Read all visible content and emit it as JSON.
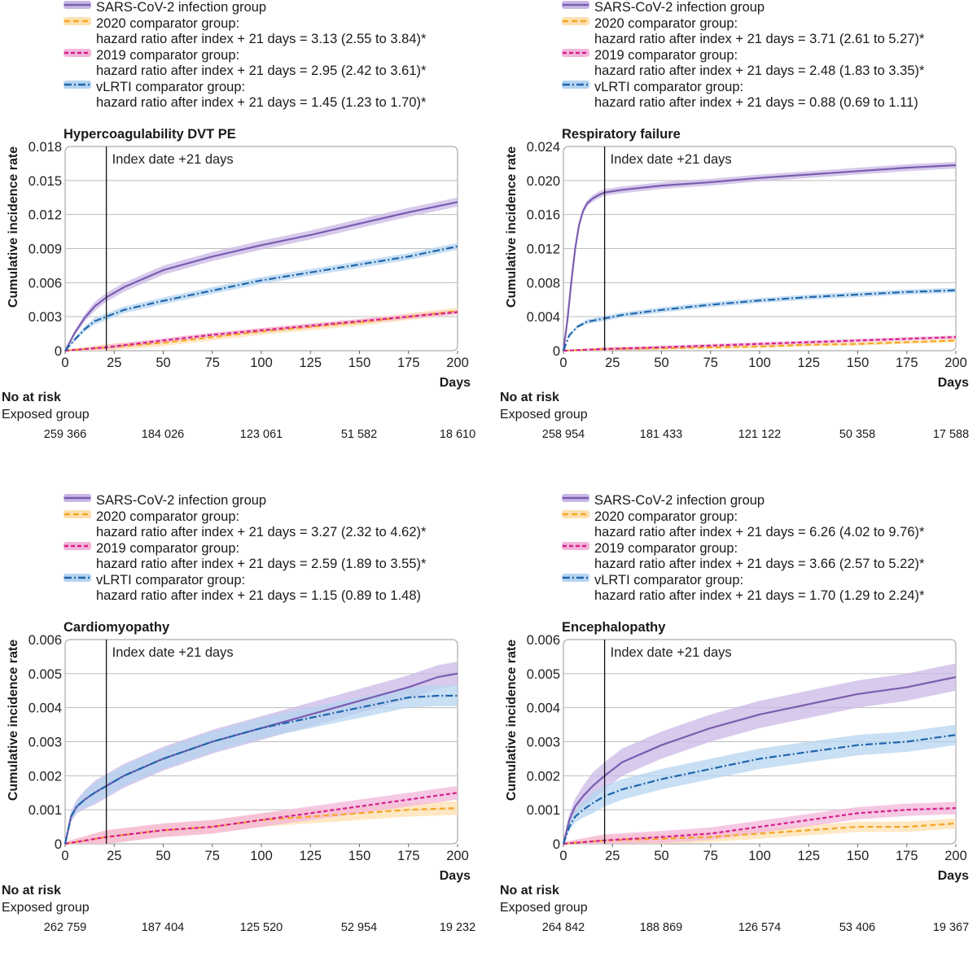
{
  "series_styles": [
    {
      "key": "sars",
      "color": "#7b5cb0",
      "band": "#c9b8e6",
      "dash": ""
    },
    {
      "key": "c2020",
      "color": "#f5a623",
      "band": "#fde0b0",
      "dash": "7,4"
    },
    {
      "key": "c2019",
      "color": "#d6208e",
      "band": "#f3b6da",
      "dash": "5,3"
    },
    {
      "key": "vlrti",
      "color": "#2066ac",
      "band": "#b6d4f0",
      "dash": "9,3,2,3"
    }
  ],
  "index_label": "Index date +21 days",
  "ylabel": "Cumulative incidence rate",
  "xlabel": "Days",
  "risk_title": "No at risk",
  "risk_group": "Exposed group",
  "chart_data": [
    {
      "type": "line",
      "title": "Hypercoagulability DVT PE",
      "legend": [
        {
          "title": "SARS-CoV-2 infection group",
          "hr": ""
        },
        {
          "title": "2020 comparator group:",
          "hr": "hazard ratio after index + 21 days = 3.13 (2.55 to 3.84)*"
        },
        {
          "title": "2019 comparator group:",
          "hr": "hazard ratio after index + 21 days = 2.95 (2.42 to 3.61)*"
        },
        {
          "title": "vLRTI comparator group:",
          "hr": "hazard ratio after index + 21 days = 1.45 (1.23 to 1.70)*"
        }
      ],
      "xlim": [
        0,
        200
      ],
      "ylim": [
        0,
        0.018
      ],
      "xticks": [
        0,
        25,
        50,
        75,
        100,
        125,
        150,
        175,
        200
      ],
      "yticks": [
        0,
        0.003,
        0.006,
        0.009,
        0.012,
        0.015,
        0.018
      ],
      "ytick_labels": [
        "0",
        "0.003",
        "0.006",
        "0.009",
        "0.012",
        "0.015",
        "0.018"
      ],
      "index_day": 21,
      "series": [
        {
          "name": "SARS-CoV-2 infection group",
          "x": [
            0,
            5,
            10,
            15,
            21,
            30,
            50,
            75,
            100,
            125,
            150,
            175,
            200
          ],
          "y": [
            0,
            0.0016,
            0.0029,
            0.0039,
            0.0047,
            0.0056,
            0.0071,
            0.0083,
            0.0093,
            0.0102,
            0.0112,
            0.0122,
            0.0131
          ],
          "band": 0.0004
        },
        {
          "name": "2020 comparator group",
          "x": [
            0,
            21,
            50,
            75,
            100,
            125,
            150,
            175,
            200
          ],
          "y": [
            0,
            0.0003,
            0.0007,
            0.0012,
            0.0017,
            0.0021,
            0.0025,
            0.003,
            0.0035
          ],
          "band": 0.0003
        },
        {
          "name": "2019 comparator group",
          "x": [
            0,
            21,
            50,
            75,
            100,
            125,
            150,
            175,
            200
          ],
          "y": [
            0,
            0.0003,
            0.0009,
            0.0014,
            0.0018,
            0.0022,
            0.0026,
            0.003,
            0.0034
          ],
          "band": 0.0002
        },
        {
          "name": "vLRTI comparator group",
          "x": [
            0,
            5,
            10,
            15,
            21,
            30,
            50,
            75,
            100,
            125,
            150,
            175,
            200
          ],
          "y": [
            0,
            0.001,
            0.0019,
            0.0026,
            0.003,
            0.0036,
            0.0044,
            0.0053,
            0.0062,
            0.0069,
            0.0076,
            0.0083,
            0.0092
          ],
          "band": 0.0003
        }
      ],
      "risk": [
        "259 366",
        "184 026",
        "123 061",
        "51 582",
        "18 610"
      ]
    },
    {
      "type": "line",
      "title": "Respiratory failure",
      "legend": [
        {
          "title": "SARS-CoV-2 infection group",
          "hr": ""
        },
        {
          "title": "2020 comparator group:",
          "hr": "hazard ratio after index + 21 days = 3.71 (2.61 to 5.27)*"
        },
        {
          "title": "2019 comparator group:",
          "hr": "hazard ratio after index + 21 days = 2.48 (1.83 to 3.35)*"
        },
        {
          "title": "vLRTI comparator group:",
          "hr": "hazard ratio after index + 21 days = 0.88 (0.69 to 1.11)"
        }
      ],
      "xlim": [
        0,
        200
      ],
      "ylim": [
        0,
        0.024
      ],
      "xticks": [
        0,
        25,
        50,
        75,
        100,
        125,
        150,
        175,
        200
      ],
      "yticks": [
        0,
        0.004,
        0.008,
        0.012,
        0.016,
        0.02,
        0.024
      ],
      "ytick_labels": [
        "0",
        "0.004",
        "0.008",
        "0.012",
        "0.016",
        "0.020",
        "0.024"
      ],
      "index_day": 21,
      "series": [
        {
          "name": "SARS-CoV-2 infection group",
          "x": [
            0,
            2,
            4,
            6,
            8,
            10,
            12,
            15,
            18,
            21,
            30,
            50,
            75,
            100,
            125,
            150,
            175,
            200
          ],
          "y": [
            0,
            0.0035,
            0.008,
            0.012,
            0.0148,
            0.0164,
            0.0173,
            0.0179,
            0.0183,
            0.0186,
            0.0189,
            0.0194,
            0.0198,
            0.0203,
            0.0207,
            0.0211,
            0.0215,
            0.0218
          ],
          "band": 0.0004
        },
        {
          "name": "2020 comparator group",
          "x": [
            0,
            21,
            50,
            75,
            100,
            125,
            150,
            175,
            200
          ],
          "y": [
            0,
            0.0002,
            0.0003,
            0.0004,
            0.0005,
            0.0007,
            0.0008,
            0.001,
            0.0012
          ],
          "band": 0.0002
        },
        {
          "name": "2019 comparator group",
          "x": [
            0,
            21,
            50,
            75,
            100,
            125,
            150,
            175,
            200
          ],
          "y": [
            0,
            0.0002,
            0.0004,
            0.0006,
            0.0008,
            0.001,
            0.0012,
            0.0014,
            0.0016
          ],
          "band": 0.0002
        },
        {
          "name": "vLRTI comparator group",
          "x": [
            0,
            3,
            7,
            12,
            21,
            30,
            50,
            75,
            100,
            125,
            150,
            175,
            200
          ],
          "y": [
            0,
            0.0018,
            0.0028,
            0.0034,
            0.0038,
            0.0042,
            0.0048,
            0.0054,
            0.0059,
            0.0063,
            0.0066,
            0.0069,
            0.0071
          ],
          "band": 0.0003
        }
      ],
      "risk": [
        "258 954",
        "181 433",
        "121 122",
        "50 358",
        "17 588"
      ]
    },
    {
      "type": "line",
      "title": "Cardiomyopathy",
      "legend": [
        {
          "title": "SARS-CoV-2 infection group",
          "hr": ""
        },
        {
          "title": "2020 comparator group:",
          "hr": "hazard ratio after index + 21 days = 3.27 (2.32 to 4.62)*"
        },
        {
          "title": "2019 comparator group:",
          "hr": "hazard ratio after index + 21 days = 2.59 (1.89 to 3.55)*"
        },
        {
          "title": "vLRTI comparator group:",
          "hr": "hazard ratio after index + 21 days = 1.15 (0.89 to 1.48)"
        }
      ],
      "xlim": [
        0,
        200
      ],
      "ylim": [
        0,
        0.006
      ],
      "xticks": [
        0,
        25,
        50,
        75,
        100,
        125,
        150,
        175,
        200
      ],
      "yticks": [
        0,
        0.001,
        0.002,
        0.003,
        0.004,
        0.005,
        0.006
      ],
      "ytick_labels": [
        "0",
        "0.001",
        "0.002",
        "0.003",
        "0.004",
        "0.005",
        "0.006"
      ],
      "index_day": 21,
      "series": [
        {
          "name": "SARS-CoV-2 infection group",
          "x": [
            0,
            3,
            6,
            10,
            15,
            21,
            30,
            50,
            75,
            100,
            125,
            150,
            175,
            190,
            200
          ],
          "y": [
            0,
            0.0008,
            0.0011,
            0.0013,
            0.0015,
            0.0017,
            0.002,
            0.0025,
            0.003,
            0.0034,
            0.0038,
            0.0042,
            0.0046,
            0.0049,
            0.005
          ],
          "band": 0.00035
        },
        {
          "name": "2020 comparator group",
          "x": [
            0,
            21,
            50,
            75,
            100,
            125,
            150,
            175,
            200
          ],
          "y": [
            0,
            0.0002,
            0.0004,
            0.0005,
            0.0007,
            0.0008,
            0.0009,
            0.001,
            0.00105
          ],
          "band": 0.0002
        },
        {
          "name": "2019 comparator group",
          "x": [
            0,
            21,
            50,
            75,
            100,
            125,
            150,
            175,
            200
          ],
          "y": [
            0,
            0.0002,
            0.0004,
            0.0005,
            0.0007,
            0.0009,
            0.0011,
            0.0013,
            0.0015
          ],
          "band": 0.0002
        },
        {
          "name": "vLRTI comparator group",
          "x": [
            0,
            3,
            6,
            10,
            15,
            21,
            30,
            50,
            75,
            100,
            125,
            150,
            175,
            190,
            200
          ],
          "y": [
            0,
            0.0008,
            0.0011,
            0.0013,
            0.0015,
            0.0017,
            0.002,
            0.0025,
            0.003,
            0.0034,
            0.0037,
            0.004,
            0.0043,
            0.00435,
            0.00435
          ],
          "band": 0.0003
        }
      ],
      "risk": [
        "262 759",
        "187 404",
        "125 520",
        "52 954",
        "19 232"
      ]
    },
    {
      "type": "line",
      "title": "Encephalopathy",
      "legend": [
        {
          "title": "SARS-CoV-2 infection group",
          "hr": ""
        },
        {
          "title": "2020 comparator group:",
          "hr": "hazard ratio after index + 21 days = 6.26 (4.02 to 9.76)*"
        },
        {
          "title": "2019 comparator group:",
          "hr": "hazard ratio after index + 21 days = 3.66 (2.57 to 5.22)*"
        },
        {
          "title": "vLRTI comparator group:",
          "hr": "hazard ratio after index + 21 days = 1.70 (1.29 to 2.24)*"
        }
      ],
      "xlim": [
        0,
        200
      ],
      "ylim": [
        0,
        0.006
      ],
      "xticks": [
        0,
        25,
        50,
        75,
        100,
        125,
        150,
        175,
        200
      ],
      "yticks": [
        0,
        0.001,
        0.002,
        0.003,
        0.004,
        0.005,
        0.006
      ],
      "ytick_labels": [
        "0",
        "0.001",
        "0.002",
        "0.003",
        "0.004",
        "0.005",
        "0.006"
      ],
      "index_day": 21,
      "series": [
        {
          "name": "SARS-CoV-2 infection group",
          "x": [
            0,
            3,
            6,
            10,
            15,
            21,
            30,
            50,
            75,
            100,
            125,
            150,
            175,
            200
          ],
          "y": [
            0,
            0.0007,
            0.0011,
            0.0014,
            0.0017,
            0.002,
            0.0024,
            0.0029,
            0.0034,
            0.0038,
            0.0041,
            0.0044,
            0.0046,
            0.0049
          ],
          "band": 0.0004
        },
        {
          "name": "2020 comparator group",
          "x": [
            0,
            21,
            50,
            75,
            100,
            125,
            150,
            175,
            200
          ],
          "y": [
            0,
            0.0001,
            0.00015,
            0.0002,
            0.0003,
            0.0004,
            0.0005,
            0.0005,
            0.0006
          ],
          "band": 0.00015
        },
        {
          "name": "2019 comparator group",
          "x": [
            0,
            21,
            50,
            75,
            100,
            125,
            150,
            175,
            200
          ],
          "y": [
            0,
            0.0001,
            0.0002,
            0.0003,
            0.0005,
            0.0007,
            0.0009,
            0.001,
            0.00105
          ],
          "band": 0.00018
        },
        {
          "name": "vLRTI comparator group",
          "x": [
            0,
            3,
            6,
            10,
            15,
            21,
            30,
            50,
            75,
            100,
            125,
            150,
            175,
            200
          ],
          "y": [
            0,
            0.0005,
            0.0008,
            0.001,
            0.0012,
            0.0014,
            0.0016,
            0.0019,
            0.0022,
            0.0025,
            0.0027,
            0.0029,
            0.003,
            0.0032
          ],
          "band": 0.0003
        }
      ],
      "risk": [
        "264 842",
        "188 869",
        "126 574",
        "53 406",
        "19 367"
      ]
    }
  ]
}
